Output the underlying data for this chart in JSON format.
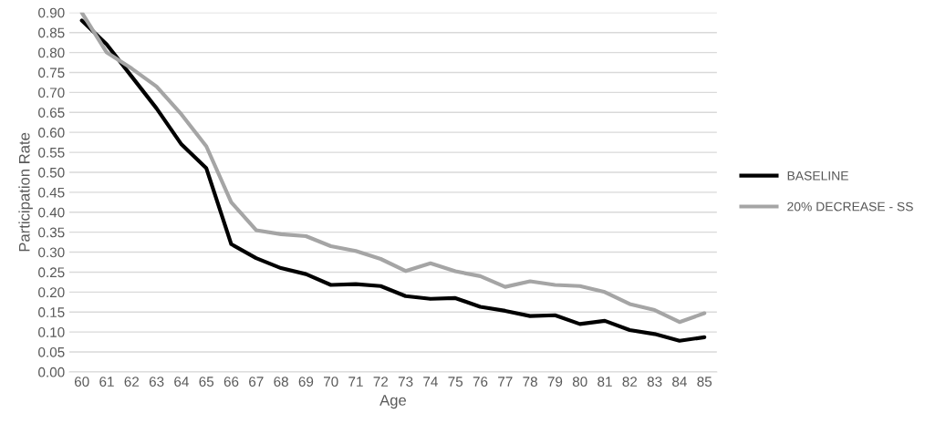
{
  "chart_data": {
    "type": "line",
    "xlabel": "Age",
    "ylabel": "Participation Rate",
    "categories": [
      "60",
      "61",
      "62",
      "63",
      "64",
      "65",
      "66",
      "67",
      "68",
      "69",
      "70",
      "71",
      "72",
      "73",
      "74",
      "75",
      "76",
      "77",
      "78",
      "79",
      "80",
      "81",
      "82",
      "83",
      "84",
      "85"
    ],
    "series": [
      {
        "name": "BASELINE",
        "color": "#000000",
        "values": [
          0.88,
          0.82,
          0.74,
          0.66,
          0.57,
          0.51,
          0.32,
          0.285,
          0.26,
          0.245,
          0.218,
          0.22,
          0.215,
          0.19,
          0.183,
          0.185,
          0.163,
          0.153,
          0.14,
          0.142,
          0.12,
          0.128,
          0.105,
          0.095,
          0.078,
          0.087
        ]
      },
      {
        "name": "20% DECREASE - SS",
        "color": "#a5a5a5",
        "values": [
          0.9,
          0.8,
          0.76,
          0.715,
          0.645,
          0.565,
          0.425,
          0.355,
          0.345,
          0.34,
          0.315,
          0.303,
          0.283,
          0.253,
          0.272,
          0.252,
          0.24,
          0.213,
          0.227,
          0.218,
          0.215,
          0.2,
          0.17,
          0.155,
          0.125,
          0.147
        ]
      }
    ],
    "ylim": [
      0,
      0.9
    ],
    "yticks": [
      {
        "value": 0,
        "label": "0.00"
      },
      {
        "value": 0.05,
        "label": "0.05"
      },
      {
        "value": 0.1,
        "label": "0.10"
      },
      {
        "value": 0.15,
        "label": "0.15"
      },
      {
        "value": 0.2,
        "label": "0.20"
      },
      {
        "value": 0.25,
        "label": "0.25"
      },
      {
        "value": 0.3,
        "label": "0.30"
      },
      {
        "value": 0.35,
        "label": "0.35"
      },
      {
        "value": 0.4,
        "label": "0.40"
      },
      {
        "value": 0.45,
        "label": "0.45"
      },
      {
        "value": 0.5,
        "label": "0.50"
      },
      {
        "value": 0.55,
        "label": "0.55"
      },
      {
        "value": 0.6,
        "label": "0.60"
      },
      {
        "value": 0.65,
        "label": "0.65"
      },
      {
        "value": 0.7,
        "label": "0.70"
      },
      {
        "value": 0.75,
        "label": "0.75"
      },
      {
        "value": 0.8,
        "label": "0.80"
      },
      {
        "value": 0.85,
        "label": "0.85"
      },
      {
        "value": 0.9,
        "label": "0.90"
      }
    ],
    "grid": "y",
    "legend": "right",
    "marker": "none",
    "line_style": "solid"
  }
}
